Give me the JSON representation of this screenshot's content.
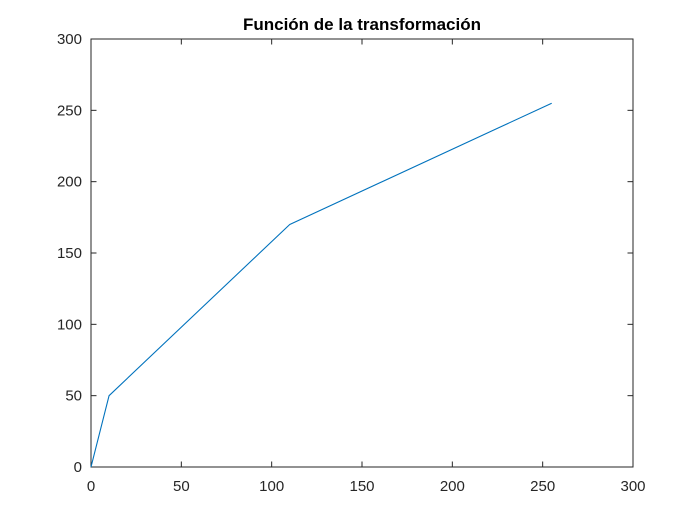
{
  "chart_data": {
    "type": "line",
    "title": "Función de la transformación",
    "xlabel": "",
    "ylabel": "",
    "xlim": [
      0,
      300
    ],
    "ylim": [
      0,
      300
    ],
    "xticks": [
      0,
      50,
      100,
      150,
      200,
      250,
      300
    ],
    "yticks": [
      0,
      50,
      100,
      150,
      200,
      250,
      300
    ],
    "grid": false,
    "series": [
      {
        "color": "#0072BD",
        "x": [
          0,
          10,
          110,
          255
        ],
        "y": [
          0,
          50,
          170,
          255
        ]
      }
    ]
  }
}
